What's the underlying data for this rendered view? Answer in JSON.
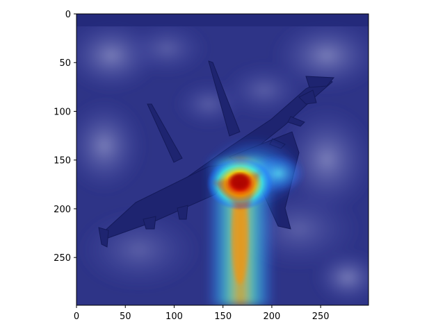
{
  "figure": {
    "x_ticks": [
      "0",
      "50",
      "100",
      "150",
      "200",
      "250"
    ],
    "y_ticks": [
      "0",
      "50",
      "100",
      "150",
      "200",
      "250"
    ],
    "xlim": [
      0,
      299
    ],
    "ylim": [
      299,
      0
    ],
    "y_inverted": true
  },
  "image": {
    "subject": "fighter jet in flight above clouds",
    "overlay": "jet colormap heatmap",
    "heatmap_peak": {
      "x": 168,
      "y": 170
    },
    "heatmap_trail": {
      "x": 168,
      "y_from": 170,
      "y_to": 295
    },
    "colors": {
      "background_tint": "#2e3487",
      "cloud_light": "#7478b8",
      "jet_body": "#1c226e",
      "heat_red": "#c80000",
      "heat_yellow": "#ffe800",
      "heat_cyan": "#40e0ff"
    }
  }
}
